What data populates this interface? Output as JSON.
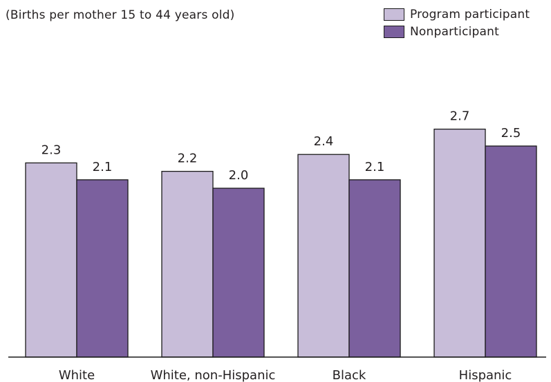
{
  "subtitle": "(Births per mother 15 to 44 years old)",
  "legend": {
    "items": [
      {
        "label": "Program participant",
        "color": "#c8bdd9"
      },
      {
        "label": "Nonparticipant",
        "color": "#7b609e"
      }
    ]
  },
  "chart_data": {
    "type": "bar",
    "title": "",
    "subtitle": "(Births per mother 15 to 44 years old)",
    "xlabel": "",
    "ylabel": "",
    "grid": false,
    "legend_position": "top-right",
    "ylim": [
      0,
      3.2
    ],
    "categories": [
      "White",
      "White, non-Hispanic",
      "Black",
      "Hispanic"
    ],
    "series": [
      {
        "name": "Program participant",
        "values": [
          2.3,
          2.2,
          2.4,
          2.7
        ],
        "color": "#c8bdd9"
      },
      {
        "name": "Nonparticipant",
        "values": [
          2.1,
          2.0,
          2.1,
          2.5
        ],
        "color": "#7b609e"
      }
    ],
    "data_labels": [
      [
        "2.3",
        "2.2",
        "2.4",
        "2.7"
      ],
      [
        "2.1",
        "2.0",
        "2.1",
        "2.5"
      ]
    ]
  }
}
